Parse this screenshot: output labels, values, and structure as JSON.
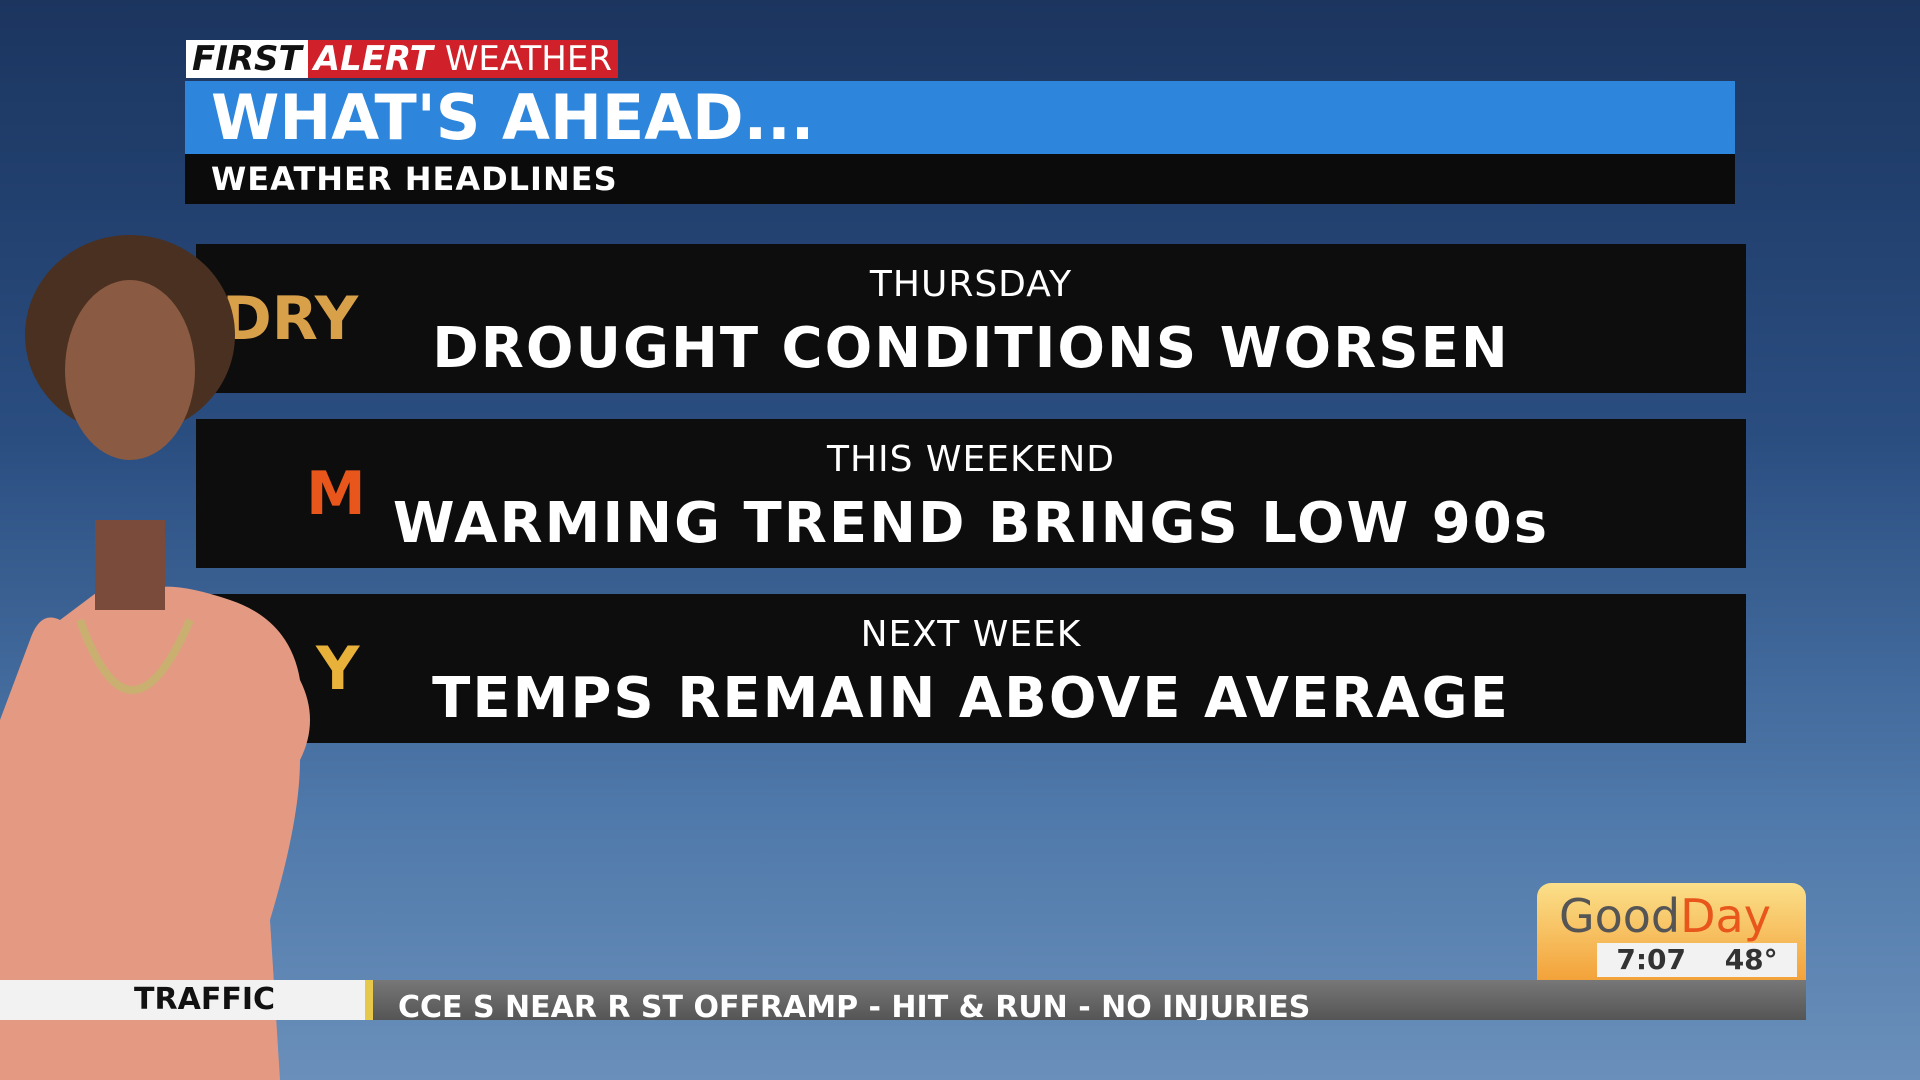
{
  "header": {
    "brand": {
      "first": "FIRST",
      "alert": "ALERT",
      "weather": "WEATHER"
    },
    "title": "WHAT'S AHEAD...",
    "subtitle": "WEATHER HEADLINES"
  },
  "headlines": [
    {
      "icon": "DRY",
      "period": "THURSDAY",
      "text": "DROUGHT CONDITIONS WORSEN"
    },
    {
      "icon": "M",
      "period": "THIS WEEKEND",
      "text": "WARMING TREND BRINGS LOW 90s"
    },
    {
      "icon": "Y",
      "period": "NEXT WEEK",
      "text": "TEMPS REMAIN ABOVE AVERAGE"
    }
  ],
  "logo": {
    "good": "Good",
    "day": "Day",
    "time": "7:07",
    "temp": "48°"
  },
  "ticker": {
    "label": "TRAFFIC",
    "text": "CCE S NEAR R ST OFFRAMP - HIT & RUN - NO INJURIES"
  }
}
